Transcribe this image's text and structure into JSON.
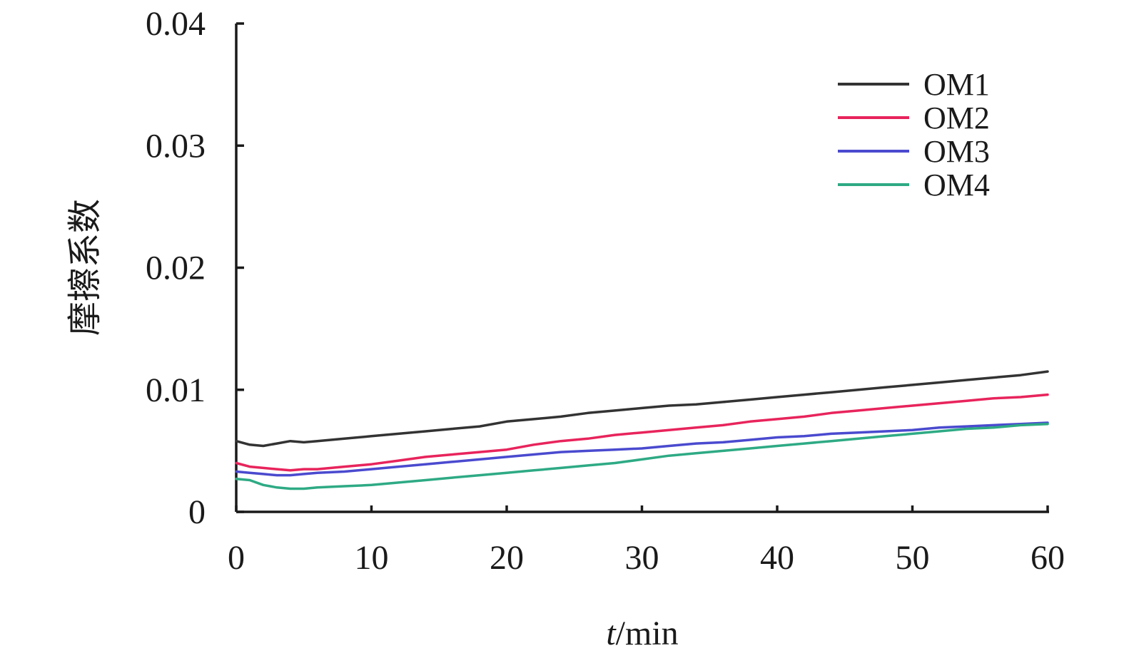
{
  "chart_data": {
    "type": "line",
    "title": "",
    "xlabel_italic": "t",
    "xlabel_rest": "/min",
    "ylabel": "摩擦系数",
    "xlim": [
      0,
      60
    ],
    "ylim": [
      0,
      0.04
    ],
    "x_ticks": [
      0,
      10,
      20,
      30,
      40,
      50,
      60
    ],
    "x_tick_labels": [
      "0",
      "10",
      "20",
      "30",
      "40",
      "50",
      "60"
    ],
    "y_ticks": [
      0,
      0.01,
      0.02,
      0.03,
      0.04
    ],
    "y_tick_labels": [
      "0",
      "0.01",
      "0.02",
      "0.03",
      "0.04"
    ],
    "grid": false,
    "legend_position": "top-right",
    "x": [
      0,
      1,
      2,
      3,
      4,
      5,
      6,
      8,
      10,
      12,
      14,
      16,
      18,
      20,
      22,
      24,
      26,
      28,
      30,
      32,
      34,
      36,
      38,
      40,
      42,
      44,
      46,
      48,
      50,
      52,
      54,
      56,
      58,
      60
    ],
    "series": [
      {
        "name": "OM1",
        "color": "#333333",
        "values": [
          0.0058,
          0.0055,
          0.0054,
          0.0056,
          0.0058,
          0.0057,
          0.0058,
          0.006,
          0.0062,
          0.0064,
          0.0066,
          0.0068,
          0.007,
          0.0074,
          0.0076,
          0.0078,
          0.0081,
          0.0083,
          0.0085,
          0.0087,
          0.0088,
          0.009,
          0.0092,
          0.0094,
          0.0096,
          0.0098,
          0.01,
          0.0102,
          0.0104,
          0.0106,
          0.0108,
          0.011,
          0.0112,
          0.0115
        ]
      },
      {
        "name": "OM2",
        "color": "#e8245c",
        "values": [
          0.004,
          0.0037,
          0.0036,
          0.0035,
          0.0034,
          0.0035,
          0.0035,
          0.0037,
          0.0039,
          0.0042,
          0.0045,
          0.0047,
          0.0049,
          0.0051,
          0.0055,
          0.0058,
          0.006,
          0.0063,
          0.0065,
          0.0067,
          0.0069,
          0.0071,
          0.0074,
          0.0076,
          0.0078,
          0.0081,
          0.0083,
          0.0085,
          0.0087,
          0.0089,
          0.0091,
          0.0093,
          0.0094,
          0.0096
        ]
      },
      {
        "name": "OM3",
        "color": "#4a4acf",
        "values": [
          0.0033,
          0.0032,
          0.0031,
          0.003,
          0.003,
          0.0031,
          0.0032,
          0.0033,
          0.0035,
          0.0037,
          0.0039,
          0.0041,
          0.0043,
          0.0045,
          0.0047,
          0.0049,
          0.005,
          0.0051,
          0.0052,
          0.0054,
          0.0056,
          0.0057,
          0.0059,
          0.0061,
          0.0062,
          0.0064,
          0.0065,
          0.0066,
          0.0067,
          0.0069,
          0.007,
          0.0071,
          0.0072,
          0.0073
        ]
      },
      {
        "name": "OM4",
        "color": "#2eaa84",
        "values": [
          0.0027,
          0.0026,
          0.0022,
          0.002,
          0.0019,
          0.0019,
          0.002,
          0.0021,
          0.0022,
          0.0024,
          0.0026,
          0.0028,
          0.003,
          0.0032,
          0.0034,
          0.0036,
          0.0038,
          0.004,
          0.0043,
          0.0046,
          0.0048,
          0.005,
          0.0052,
          0.0054,
          0.0056,
          0.0058,
          0.006,
          0.0062,
          0.0064,
          0.0066,
          0.0068,
          0.0069,
          0.0071,
          0.0072
        ]
      }
    ]
  }
}
